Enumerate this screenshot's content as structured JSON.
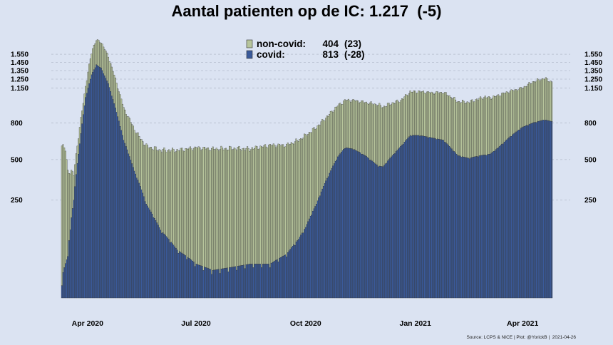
{
  "title": "Aantal patienten op de IC: 1.217  (-5)",
  "source": "Source: LCPS & NICE | Plot: @YorickB |  2021-04-26",
  "colors": {
    "covid": "#3a5a9a",
    "noncovid": "#b7c59c",
    "background": "#dbe3f2",
    "edge": "#333333",
    "grid": "#b4bccc"
  },
  "chart_data": {
    "type": "bar",
    "stacked": true,
    "ylim": [
      0,
      1700
    ],
    "yscale": "sqrt",
    "yticks": [
      250,
      500,
      800,
      1150,
      1250,
      1350,
      1450,
      1550
    ],
    "yticklabels": [
      "250",
      "500",
      "800",
      "1.150",
      "1.250",
      "1.350",
      "1.450",
      "1.550"
    ],
    "xticks": [
      {
        "label": "Apr 2020",
        "date": "2020-04-01"
      },
      {
        "label": "Jul 2020",
        "date": "2020-07-01"
      },
      {
        "label": "Oct 2020",
        "date": "2020-10-01"
      },
      {
        "label": "Jan 2021",
        "date": "2021-01-01"
      },
      {
        "label": "Apr 2021",
        "date": "2021-04-01"
      }
    ],
    "x_start": "2020-03-10",
    "x_end": "2021-04-26",
    "legend": {
      "position": "top-center",
      "entries": [
        {
          "series": "non-covid",
          "label": "non-covid:",
          "value": "404",
          "change": "(23)"
        },
        {
          "series": "covid",
          "label": "covid:",
          "value": "813",
          "change": "(-28)"
        }
      ]
    },
    "grid": true,
    "series": [
      {
        "name": "covid",
        "keypoints": [
          [
            "2020-03-10",
            10
          ],
          [
            "2020-03-15",
            45
          ],
          [
            "2020-03-20",
            250
          ],
          [
            "2020-03-25",
            620
          ],
          [
            "2020-03-30",
            1050
          ],
          [
            "2020-04-04",
            1300
          ],
          [
            "2020-04-08",
            1420
          ],
          [
            "2020-04-12",
            1380
          ],
          [
            "2020-04-18",
            1200
          ],
          [
            "2020-04-25",
            900
          ],
          [
            "2020-05-01",
            650
          ],
          [
            "2020-05-10",
            420
          ],
          [
            "2020-05-20",
            230
          ],
          [
            "2020-06-01",
            120
          ],
          [
            "2020-06-15",
            60
          ],
          [
            "2020-07-01",
            30
          ],
          [
            "2020-07-15",
            20
          ],
          [
            "2020-08-01",
            25
          ],
          [
            "2020-08-15",
            30
          ],
          [
            "2020-09-01",
            30
          ],
          [
            "2020-09-15",
            50
          ],
          [
            "2020-09-25",
            90
          ],
          [
            "2020-10-01",
            130
          ],
          [
            "2020-10-10",
            230
          ],
          [
            "2020-10-20",
            390
          ],
          [
            "2020-10-28",
            520
          ],
          [
            "2020-11-03",
            590
          ],
          [
            "2020-11-10",
            580
          ],
          [
            "2020-11-20",
            530
          ],
          [
            "2020-12-01",
            455
          ],
          [
            "2020-12-05",
            450
          ],
          [
            "2020-12-12",
            520
          ],
          [
            "2020-12-20",
            600
          ],
          [
            "2020-12-28",
            690
          ],
          [
            "2021-01-05",
            690
          ],
          [
            "2021-01-15",
            670
          ],
          [
            "2021-01-25",
            650
          ],
          [
            "2021-02-01",
            580
          ],
          [
            "2021-02-06",
            530
          ],
          [
            "2021-02-15",
            510
          ],
          [
            "2021-02-25",
            530
          ],
          [
            "2021-03-05",
            540
          ],
          [
            "2021-03-12",
            590
          ],
          [
            "2021-03-22",
            680
          ],
          [
            "2021-04-01",
            760
          ],
          [
            "2021-04-10",
            800
          ],
          [
            "2021-04-20",
            830
          ],
          [
            "2021-04-26",
            813
          ]
        ]
      },
      {
        "name": "non-covid",
        "keypoints": [
          [
            "2020-03-10",
            600
          ],
          [
            "2020-03-13",
            540
          ],
          [
            "2020-03-15",
            380
          ],
          [
            "2020-03-20",
            150
          ],
          [
            "2020-03-25",
            130
          ],
          [
            "2020-03-30",
            120
          ],
          [
            "2020-04-05",
            300
          ],
          [
            "2020-04-12",
            330
          ],
          [
            "2020-04-20",
            320
          ],
          [
            "2020-05-01",
            290
          ],
          [
            "2020-05-15",
            340
          ],
          [
            "2020-06-01",
            450
          ],
          [
            "2020-06-15",
            510
          ],
          [
            "2020-07-01",
            560
          ],
          [
            "2020-08-01",
            560
          ],
          [
            "2020-08-15",
            550
          ],
          [
            "2020-09-01",
            580
          ],
          [
            "2020-09-15",
            560
          ],
          [
            "2020-10-01",
            560
          ],
          [
            "2020-10-10",
            530
          ],
          [
            "2020-10-20",
            480
          ],
          [
            "2020-11-01",
            430
          ],
          [
            "2020-11-10",
            440
          ],
          [
            "2020-11-20",
            470
          ],
          [
            "2020-12-01",
            520
          ],
          [
            "2020-12-10",
            480
          ],
          [
            "2020-12-20",
            420
          ],
          [
            "2021-01-01",
            420
          ],
          [
            "2021-01-15",
            430
          ],
          [
            "2021-02-01",
            470
          ],
          [
            "2021-02-15",
            490
          ],
          [
            "2021-03-01",
            520
          ],
          [
            "2021-03-15",
            470
          ],
          [
            "2021-04-01",
            390
          ],
          [
            "2021-04-10",
            420
          ],
          [
            "2021-04-20",
            430
          ],
          [
            "2021-04-26",
            404
          ]
        ]
      }
    ]
  }
}
